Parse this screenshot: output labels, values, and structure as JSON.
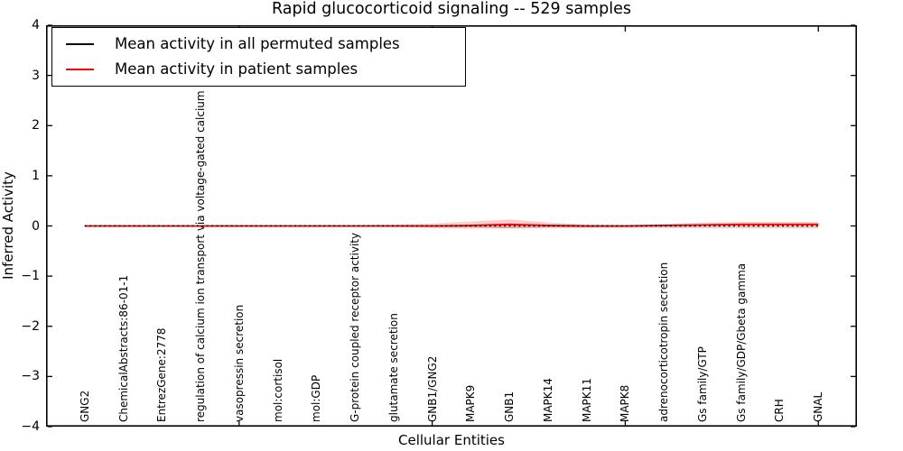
{
  "title": "Rapid glucocorticoid signaling -- 529 samples",
  "axes": {
    "xlabel": "Cellular Entities",
    "ylabel": "Inferred Activity",
    "y_tick_labels": [
      "4",
      "3",
      "2",
      "1",
      "0",
      "−1",
      "−2",
      "−3",
      "−4"
    ]
  },
  "legend": {
    "items": [
      {
        "label": "Mean activity in all permuted samples",
        "color": "#000000"
      },
      {
        "label": "Mean activity in patient samples",
        "color": "#ff0000"
      }
    ]
  },
  "chart_data": {
    "type": "line",
    "title": "Rapid glucocorticoid signaling -- 529 samples",
    "xlabel": "Cellular Entities",
    "ylabel": "Inferred Activity",
    "ylim": [
      -4,
      4
    ],
    "x_major_ticks": [
      5,
      10,
      15,
      20
    ],
    "grid": false,
    "legend_position": "upper left",
    "categories": [
      "GNG2",
      "ChemicalAbstracts:86-01-1",
      "EntrezGene:2778",
      "regulation of calcium ion transport via voltage-gated calcium channel",
      "vasopressin secretion",
      "mol:cortisol",
      "mol:GDP",
      "G-protein coupled receptor activity",
      "glutamate secretion",
      "GNB1/GNG2",
      "MAPK9",
      "GNB1",
      "MAPK14",
      "MAPK11",
      "MAPK8",
      "adrenocorticotropin secretion",
      "Gs family/GTP",
      "Gs family/GDP/Gbeta gamma",
      "CRH",
      "GNAL"
    ],
    "series": [
      {
        "name": "Mean activity in all permuted samples",
        "color": "#000000",
        "linestyle": "dashed",
        "values": [
          0,
          0,
          0,
          0,
          0,
          0,
          0,
          0,
          0,
          0,
          0,
          0,
          0,
          0,
          0,
          0,
          0,
          0,
          0,
          0
        ],
        "band": {
          "color": "#999999",
          "opacity": 0.38,
          "upper": [
            0.01,
            0.01,
            0.01,
            0.01,
            0.01,
            0.01,
            0.01,
            0.01,
            0.01,
            0.01,
            0.02,
            0.03,
            0.02,
            0.01,
            0.01,
            0.01,
            0.01,
            0.01,
            0.01,
            0.01
          ],
          "lower": [
            0.01,
            0.01,
            0.01,
            0.01,
            0.01,
            0.01,
            0.01,
            0.01,
            0.01,
            0.02,
            0.03,
            0.05,
            0.03,
            0.04,
            0.04,
            0.04,
            0.05,
            0.05,
            0.05,
            0.05
          ]
        }
      },
      {
        "name": "Mean activity in patient samples",
        "color": "#ff0000",
        "linestyle": "solid",
        "values": [
          0,
          0,
          0,
          0,
          0,
          0,
          0,
          0,
          0,
          0,
          0.01,
          0.03,
          0.01,
          0,
          0,
          0.01,
          0.02,
          0.03,
          0.03,
          0.03
        ],
        "band": {
          "color": "#ff0000",
          "opacity": 0.2,
          "upper": [
            0.02,
            0.02,
            0.02,
            0.02,
            0.02,
            0.02,
            0.02,
            0.02,
            0.03,
            0.05,
            0.08,
            0.1,
            0.06,
            0.03,
            0.02,
            0.03,
            0.05,
            0.05,
            0.05,
            0.05
          ],
          "lower": [
            0.02,
            0.02,
            0.02,
            0.02,
            0.02,
            0.02,
            0.02,
            0.02,
            0.02,
            0.04,
            0.06,
            0.08,
            0.05,
            0.03,
            0.02,
            0.02,
            0.03,
            0.03,
            0.03,
            0.03
          ]
        }
      }
    ]
  }
}
